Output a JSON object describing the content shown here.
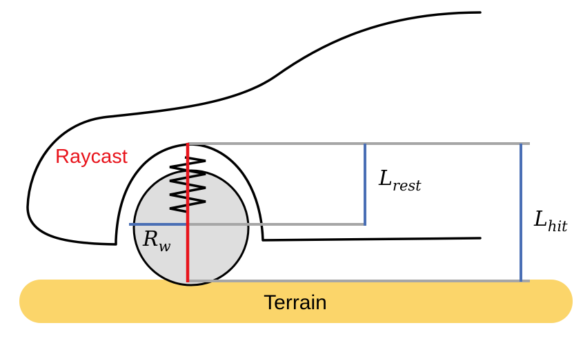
{
  "labels": {
    "raycast": "Raycast",
    "terrain": "Terrain",
    "wheel_radius": {
      "base": "R",
      "sub": "w"
    },
    "rest_length": {
      "base": "L",
      "sub": "rest"
    },
    "hit_length": {
      "base": "L",
      "sub": "hit"
    }
  },
  "colors": {
    "raycast": "#e8141c",
    "measure": "#4a6fb5",
    "guide": "#a6a6a6",
    "terrain": "#fbd56a",
    "wheel_fill": "#dedede",
    "outline": "#000000"
  }
}
